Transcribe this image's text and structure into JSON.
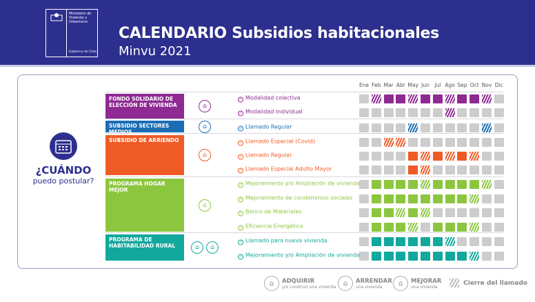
{
  "header": {
    "logo_lines": [
      "Ministerio de",
      "Vivienda y",
      "Urbanismo"
    ],
    "logo_footer": "Gobierno de Chile",
    "title": "CALENDARIO Subsidios habitacionales",
    "subtitle": "Minvu 2021",
    "color": "#2d2f8e"
  },
  "when": {
    "title": "¿CUÁNDO",
    "subtitle": "puedo postular?",
    "icon": "calendar-icon"
  },
  "months": [
    "Ene",
    "Feb",
    "Mar",
    "Abr",
    "May",
    "Jun",
    "Jul",
    "Ago",
    "Sep",
    "Oct",
    "Nov",
    "Dic"
  ],
  "cell_legend": {
    "0": "cerrado",
    "1": "abierto",
    "2": "cierre del llamado"
  },
  "programs": [
    {
      "name": "FONDO SOLIDARIO DE ELECCIÓN DE VIVIENDA",
      "color": "#8e2a92",
      "icons": [
        "adquirir-house-icon"
      ],
      "calls": [
        {
          "label": "Modalidad colectiva",
          "months": [
            0,
            2,
            1,
            1,
            2,
            1,
            1,
            2,
            1,
            1,
            2,
            0
          ]
        },
        {
          "label": "Modalidad individual",
          "months": [
            0,
            0,
            0,
            0,
            0,
            0,
            0,
            2,
            0,
            0,
            0,
            0
          ]
        }
      ]
    },
    {
      "name": "SUBSIDIO SECTORES MEDIOS",
      "color": "#1a6db5",
      "icons": [
        "adquirir-house-icon"
      ],
      "calls": [
        {
          "label": "Llamado Regular",
          "months": [
            0,
            0,
            0,
            0,
            2,
            0,
            0,
            0,
            0,
            0,
            2,
            0
          ]
        }
      ]
    },
    {
      "name": "SUBSIDIO DE ARRIENDO",
      "color": "#ef5b25",
      "icons": [
        "arrendar-icon"
      ],
      "calls": [
        {
          "label": "Llamado Especial (Covid)",
          "months": [
            0,
            0,
            2,
            2,
            0,
            0,
            0,
            0,
            0,
            0,
            0,
            0
          ]
        },
        {
          "label": "Llamado Regular",
          "months": [
            0,
            0,
            0,
            0,
            1,
            2,
            1,
            2,
            1,
            2,
            0,
            0
          ]
        },
        {
          "label": "Llamado Especial Adulto Mayor",
          "months": [
            0,
            0,
            0,
            0,
            1,
            2,
            0,
            0,
            0,
            0,
            0,
            0
          ]
        }
      ]
    },
    {
      "name": "PROGRAMA HOGAR MEJOR",
      "color": "#8cc63f",
      "icons": [
        "mejorar-house-icon"
      ],
      "calls": [
        {
          "label": "Mejoramiento y/o Ampliación de viviendas",
          "months": [
            0,
            1,
            1,
            1,
            1,
            2,
            1,
            1,
            1,
            1,
            2,
            0
          ]
        },
        {
          "label": "Mejoramiento de condominios sociales",
          "months": [
            0,
            1,
            1,
            1,
            1,
            1,
            1,
            1,
            1,
            2,
            0,
            0
          ]
        },
        {
          "label": "Banco de Materiales",
          "months": [
            0,
            1,
            1,
            2,
            1,
            2,
            0,
            0,
            0,
            0,
            0,
            0
          ]
        },
        {
          "label": "Eficiencia Energética",
          "months": [
            0,
            1,
            1,
            1,
            2,
            0,
            1,
            1,
            1,
            2,
            0,
            0
          ]
        }
      ]
    },
    {
      "name": "PROGRAMA DE HABITABILIDAD RURAL",
      "color": "#12a89d",
      "icons": [
        "adquirir-house-icon",
        "mejorar-house-icon"
      ],
      "calls": [
        {
          "label": "Llamado para nueva vivienda",
          "months": [
            0,
            1,
            1,
            1,
            1,
            1,
            1,
            2,
            0,
            0,
            0,
            0
          ]
        },
        {
          "label": "Mejoramiento y/o Ampliación de viviendas",
          "months": [
            0,
            1,
            1,
            1,
            1,
            1,
            1,
            1,
            1,
            2,
            0,
            0
          ]
        }
      ]
    }
  ],
  "legend": [
    {
      "icon": "adquirir-house-icon",
      "title": "ADQUIRIR",
      "sub": "y/o construir una vivienda"
    },
    {
      "icon": "arrendar-icon",
      "title": "ARRENDAR",
      "sub": "una vivienda"
    },
    {
      "icon": "mejorar-house-icon",
      "title": "MEJORAR",
      "sub": "una vivienda"
    },
    {
      "icon": "hatch-icon",
      "title": "Cierre del llamado",
      "sub": ""
    }
  ]
}
